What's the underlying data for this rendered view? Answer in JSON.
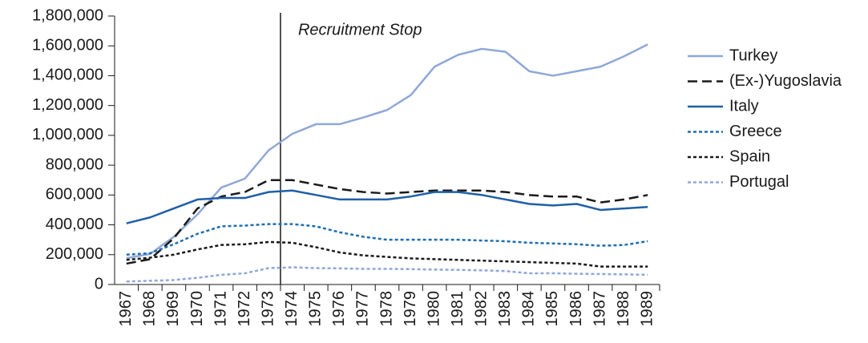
{
  "chart_data": {
    "type": "line",
    "categories": [
      "1967",
      "1968",
      "1969",
      "1970",
      "1971",
      "1972",
      "1973",
      "1974",
      "1975",
      "1976",
      "1977",
      "1978",
      "1979",
      "1980",
      "1981",
      "1982",
      "1983",
      "1984",
      "1985",
      "1986",
      "1987",
      "1988",
      "1989"
    ],
    "series": [
      {
        "name": "Turkey",
        "color": "#8fa8d6",
        "dash": "solid",
        "values": [
          177000,
          205000,
          320000,
          470000,
          650000,
          710000,
          900000,
          1010000,
          1075000,
          1075000,
          1120000,
          1170000,
          1270000,
          1460000,
          1540000,
          1580000,
          1560000,
          1430000,
          1400000,
          1430000,
          1460000,
          1530000,
          1610000
        ]
      },
      {
        "name": "(Ex-)Yugoslavia",
        "color": "#1a1a1a",
        "dash": "dashed",
        "values": [
          140000,
          170000,
          310000,
          510000,
          590000,
          620000,
          700000,
          700000,
          670000,
          640000,
          620000,
          610000,
          620000,
          630000,
          630000,
          630000,
          620000,
          600000,
          590000,
          590000,
          550000,
          570000,
          600000
        ]
      },
      {
        "name": "Italy",
        "color": "#1f5fa8",
        "dash": "solid",
        "values": [
          410000,
          450000,
          510000,
          570000,
          580000,
          580000,
          620000,
          630000,
          600000,
          570000,
          570000,
          570000,
          590000,
          620000,
          620000,
          600000,
          570000,
          540000,
          530000,
          540000,
          500000,
          510000,
          520000
        ]
      },
      {
        "name": "Greece",
        "color": "#1f6fb0",
        "dash": "dotted",
        "values": [
          200000,
          210000,
          270000,
          340000,
          390000,
          395000,
          405000,
          405000,
          390000,
          350000,
          320000,
          300000,
          300000,
          300000,
          300000,
          295000,
          290000,
          280000,
          275000,
          270000,
          260000,
          265000,
          290000
        ]
      },
      {
        "name": "Spain",
        "color": "#1a1a1a",
        "dash": "dotted",
        "values": [
          165000,
          180000,
          200000,
          235000,
          265000,
          270000,
          285000,
          280000,
          250000,
          215000,
          195000,
          185000,
          175000,
          170000,
          165000,
          160000,
          155000,
          150000,
          145000,
          140000,
          120000,
          120000,
          120000
        ]
      },
      {
        "name": "Portugal",
        "color": "#8fa8d6",
        "dash": "dotted",
        "values": [
          20000,
          25000,
          30000,
          45000,
          65000,
          75000,
          110000,
          115000,
          110000,
          108000,
          105000,
          105000,
          103000,
          100000,
          98000,
          95000,
          90000,
          75000,
          75000,
          72000,
          70000,
          68000,
          65000
        ]
      }
    ],
    "ylim": [
      0,
      1800000
    ],
    "yticks": [
      0,
      {
        "value": 200000,
        "label": "200,000"
      },
      {
        "value": 400000,
        "label": "400,000"
      },
      {
        "value": 600000,
        "label": "600,000"
      },
      {
        "value": 800000,
        "label": "800,000"
      },
      {
        "value": 1000000,
        "label": "1,000,000"
      },
      {
        "value": 1200000,
        "label": "1,200,000"
      },
      {
        "value": 1400000,
        "label": "1,400,000"
      },
      {
        "value": 1600000,
        "label": "1,600,000"
      },
      {
        "value": 1800000,
        "label": "1,800,000"
      }
    ],
    "grid": false,
    "legend": "right",
    "annotation": {
      "text": "Recruitment Stop",
      "category": "1973"
    }
  }
}
